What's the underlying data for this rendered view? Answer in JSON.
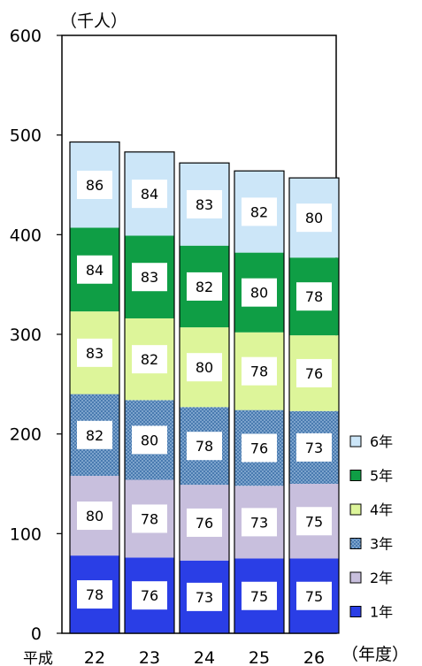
{
  "chart_data": {
    "type": "bar",
    "stacked": true,
    "title": "",
    "unit_label": "（千人）",
    "xlabel": "（年度）",
    "x_prefix": "平成",
    "categories": [
      "22",
      "23",
      "24",
      "25",
      "26"
    ],
    "ylim": [
      0,
      600
    ],
    "yticks": [
      "0",
      "100",
      "200",
      "300",
      "400",
      "500",
      "600"
    ],
    "legend_position": "bottom-right",
    "series": [
      {
        "name": "1年",
        "color": "#2a3ee6",
        "pattern": "solid",
        "values": [
          78,
          76,
          73,
          75,
          75
        ]
      },
      {
        "name": "2年",
        "color": "#c8bfdd",
        "pattern": "solid",
        "values": [
          80,
          78,
          76,
          73,
          75
        ]
      },
      {
        "name": "3年",
        "color": "#4a7bb0",
        "pattern": "dots",
        "values": [
          82,
          80,
          78,
          76,
          73
        ]
      },
      {
        "name": "4年",
        "color": "#ddf59a",
        "pattern": "solid",
        "values": [
          83,
          82,
          80,
          78,
          76
        ]
      },
      {
        "name": "5年",
        "color": "#0f9e45",
        "pattern": "solid",
        "values": [
          84,
          83,
          82,
          80,
          78
        ]
      },
      {
        "name": "6年",
        "color": "#cce6f8",
        "pattern": "solid",
        "values": [
          86,
          84,
          83,
          82,
          80
        ]
      }
    ]
  }
}
